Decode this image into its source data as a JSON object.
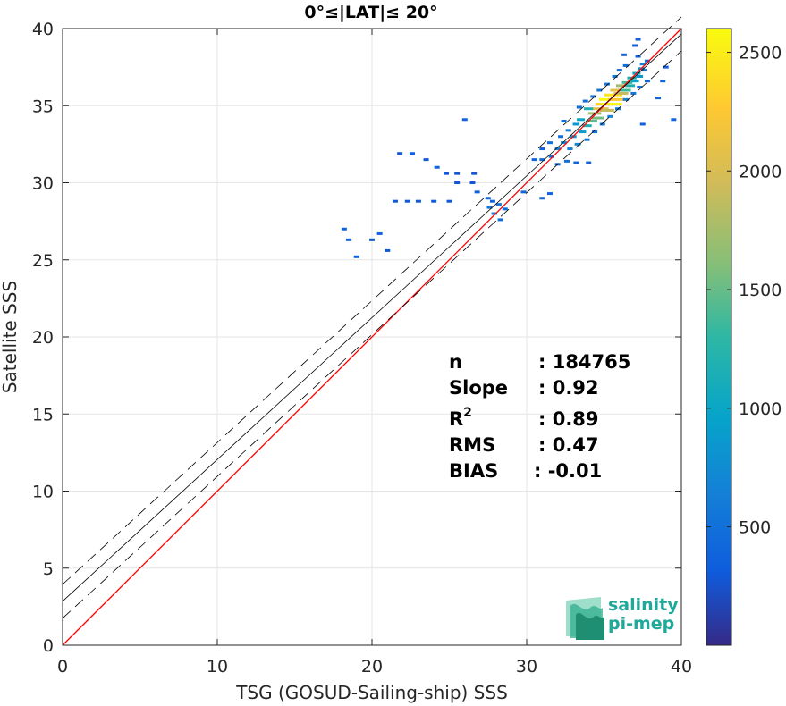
{
  "chart_data": {
    "type": "scatter",
    "title": "0°≤|LAT|≤ 20°",
    "xlabel": "TSG (GOSUD-Sailing-ship) SSS",
    "ylabel": "Satellite SSS",
    "xlim": [
      0,
      40
    ],
    "ylim": [
      0,
      40
    ],
    "xticks": [
      "0",
      "10",
      "20",
      "30",
      "40"
    ],
    "yticks": [
      "0",
      "5",
      "10",
      "15",
      "20",
      "25",
      "30",
      "35",
      "40"
    ],
    "grid": true,
    "colorbar": {
      "range": [
        1,
        2600
      ],
      "ticks": [
        "500",
        "1000",
        "1500",
        "2000",
        "2500"
      ],
      "colormap": "parula"
    },
    "lines": [
      {
        "role": "identity",
        "slope": 1,
        "intercept": 0,
        "color": "#ff0000"
      },
      {
        "role": "regression",
        "slope": 0.92,
        "intercept": 2.85,
        "color": "#000000"
      },
      {
        "role": "regression-upper",
        "slope": 0.92,
        "intercept": 3.95,
        "color": "#000000",
        "dash": true
      },
      {
        "role": "regression-lower",
        "slope": 0.92,
        "intercept": 1.75,
        "color": "#000000",
        "dash": true
      }
    ],
    "density_cells": [
      [
        18.2,
        27.0,
        3
      ],
      [
        18.5,
        26.3,
        3
      ],
      [
        19.0,
        25.2,
        3
      ],
      [
        20.0,
        26.3,
        2
      ],
      [
        20.5,
        26.7,
        3
      ],
      [
        21.0,
        25.6,
        2
      ],
      [
        21.5,
        28.8,
        2
      ],
      [
        22.3,
        28.8,
        2
      ],
      [
        23.0,
        28.8,
        2
      ],
      [
        24.0,
        28.8,
        2
      ],
      [
        25.0,
        28.8,
        2
      ],
      [
        21.8,
        31.9,
        2
      ],
      [
        22.6,
        31.9,
        3
      ],
      [
        23.5,
        31.5,
        2
      ],
      [
        24.2,
        31.0,
        3
      ],
      [
        24.8,
        30.6,
        2
      ],
      [
        25.5,
        30.6,
        2
      ],
      [
        26.6,
        30.6,
        2
      ],
      [
        25.5,
        30.0,
        2
      ],
      [
        26.5,
        30.0,
        2
      ],
      [
        26.8,
        29.4,
        3
      ],
      [
        27.5,
        29.0,
        3
      ],
      [
        26.0,
        34.1,
        3
      ],
      [
        27.6,
        28.4,
        5
      ],
      [
        27.9,
        28.0,
        6
      ],
      [
        28.2,
        28.6,
        5
      ],
      [
        28.6,
        28.3,
        4
      ],
      [
        28.3,
        27.6,
        4
      ],
      [
        27.8,
        28.8,
        3
      ],
      [
        29.8,
        29.4,
        3
      ],
      [
        31.0,
        29.0,
        3
      ],
      [
        31.5,
        29.3,
        3
      ],
      [
        31.0,
        31.5,
        4
      ],
      [
        31.6,
        31.7,
        4
      ],
      [
        32.0,
        31.2,
        4
      ],
      [
        32.6,
        31.4,
        4
      ],
      [
        33.2,
        31.3,
        3
      ],
      [
        34.0,
        31.3,
        3
      ],
      [
        32.0,
        32.2,
        6
      ],
      [
        32.4,
        32.6,
        7
      ],
      [
        32.8,
        32.2,
        6
      ],
      [
        33.0,
        33.0,
        8
      ],
      [
        33.3,
        32.5,
        7
      ],
      [
        33.6,
        33.3,
        9
      ],
      [
        32.7,
        33.4,
        6
      ],
      [
        33.2,
        33.8,
        8
      ],
      [
        33.5,
        34.1,
        10
      ],
      [
        33.9,
        33.7,
        12
      ],
      [
        34.2,
        34.0,
        15
      ],
      [
        34.4,
        34.5,
        18
      ],
      [
        34.0,
        34.8,
        12
      ],
      [
        34.6,
        34.2,
        16
      ],
      [
        34.8,
        34.8,
        22
      ],
      [
        35.0,
        35.1,
        25
      ],
      [
        35.2,
        34.7,
        20
      ],
      [
        35.3,
        35.4,
        28
      ],
      [
        35.5,
        35.1,
        30
      ],
      [
        35.6,
        35.7,
        26
      ],
      [
        35.8,
        35.4,
        24
      ],
      [
        35.9,
        36.0,
        22
      ],
      [
        36.1,
        35.8,
        20
      ],
      [
        36.2,
        36.3,
        18
      ],
      [
        36.4,
        36.0,
        14
      ],
      [
        36.5,
        36.5,
        14
      ],
      [
        36.7,
        36.3,
        12
      ],
      [
        36.8,
        36.8,
        12
      ],
      [
        37.0,
        36.6,
        10
      ],
      [
        37.1,
        37.1,
        10
      ],
      [
        37.3,
        36.9,
        8
      ],
      [
        37.4,
        37.4,
        8
      ],
      [
        37.5,
        37.7,
        6
      ],
      [
        37.6,
        37.3,
        5
      ],
      [
        37.8,
        37.9,
        4
      ],
      [
        37.2,
        38.2,
        3
      ],
      [
        36.4,
        37.6,
        4
      ],
      [
        36.0,
        37.3,
        4
      ],
      [
        35.7,
        36.9,
        5
      ],
      [
        35.2,
        36.4,
        5
      ],
      [
        34.7,
        36.0,
        5
      ],
      [
        34.3,
        35.6,
        5
      ],
      [
        33.8,
        35.3,
        4
      ],
      [
        33.4,
        34.9,
        4
      ],
      [
        36.9,
        35.8,
        5
      ],
      [
        37.3,
        36.2,
        4
      ],
      [
        37.8,
        36.6,
        3
      ],
      [
        36.4,
        35.4,
        6
      ],
      [
        35.9,
        34.8,
        6
      ],
      [
        35.4,
        34.3,
        6
      ],
      [
        34.9,
        33.8,
        5
      ],
      [
        34.4,
        33.3,
        5
      ],
      [
        33.9,
        32.8,
        5
      ],
      [
        32.4,
        34.0,
        4
      ],
      [
        32.2,
        33.0,
        4
      ],
      [
        31.5,
        32.6,
        4
      ],
      [
        31.0,
        32.2,
        3
      ],
      [
        30.5,
        31.5,
        3
      ],
      [
        36.3,
        38.3,
        3
      ],
      [
        37.0,
        38.9,
        3
      ],
      [
        37.2,
        39.3,
        3
      ],
      [
        38.5,
        35.5,
        3
      ],
      [
        39.5,
        34.1,
        3
      ],
      [
        39.0,
        37.5,
        3
      ],
      [
        38.8,
        36.6,
        3
      ],
      [
        37.5,
        33.8,
        3
      ]
    ],
    "stats": {
      "n_label": "n",
      "n_value": ": 184765",
      "slope_label": "Slope",
      "slope_value": ": 0.92",
      "r2_label": "R",
      "r2_sup": "2",
      "r2_value": ": 0.89",
      "rms_label": "RMS",
      "rms_value": ": 0.47",
      "bias_label": "BIAS",
      "bias_value": ": -0.01"
    }
  },
  "logo": {
    "line1": "salinity",
    "line2": "pi-mep"
  }
}
